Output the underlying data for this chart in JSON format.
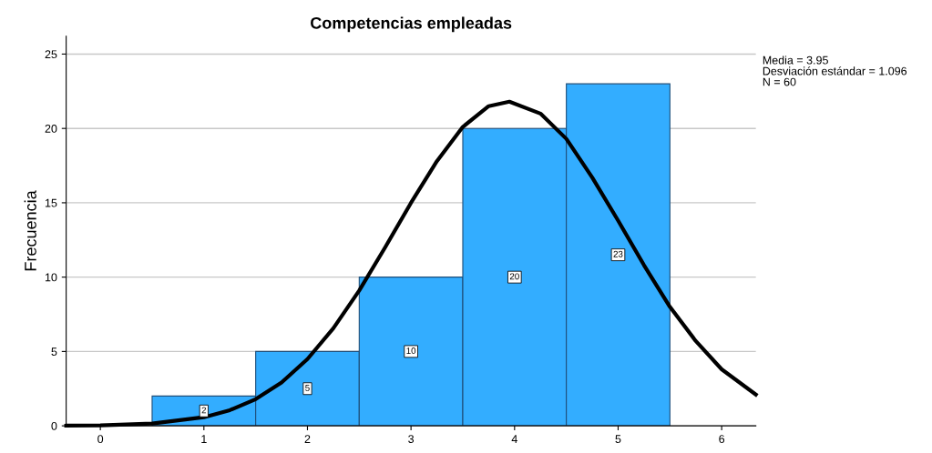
{
  "chart_data": {
    "type": "histogram",
    "title": "Competencias empleadas",
    "ylabel": "Frecuencia",
    "bins": [
      0.5,
      1.5,
      2.5,
      3.5,
      4.5,
      5.5
    ],
    "values": [
      2,
      5,
      10,
      20,
      23
    ],
    "color": "#33adff",
    "value_labels": [
      "2",
      "5",
      "10",
      "20",
      "23"
    ],
    "series": [
      {
        "type": "line",
        "color": "#000000",
        "x": [
          -0.33,
          0,
          0.5,
          1,
          1.25,
          1.5,
          1.75,
          2,
          2.25,
          2.5,
          2.75,
          3,
          3.25,
          3.5,
          3.75,
          3.95,
          4.25,
          4.5,
          4.75,
          5,
          5.25,
          5.5,
          5.75,
          6,
          6.33
        ],
        "values": [
          0.01,
          0.03,
          0.15,
          0.58,
          1.05,
          1.79,
          2.91,
          4.49,
          6.56,
          9.1,
          12.0,
          15.0,
          17.8,
          20.1,
          21.5,
          21.8,
          21.0,
          19.3,
          16.7,
          13.8,
          10.8,
          8.0,
          5.7,
          3.8,
          2.1
        ]
      }
    ],
    "xlim": [
      -0.33,
      6.33
    ],
    "xticks": [
      0,
      1,
      2,
      3,
      4,
      5,
      6
    ],
    "ylim": [
      0,
      26.2
    ],
    "yticks": [
      0,
      5,
      10,
      15,
      20,
      25
    ],
    "grid": "y",
    "annotations": [
      "Media = 3.95",
      "Desviación estándar = 1.096",
      "N = 60"
    ]
  }
}
